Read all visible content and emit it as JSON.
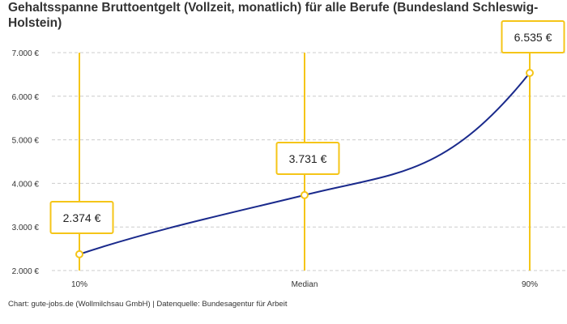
{
  "title": "Gehaltsspanne Bruttoentgelt (Vollzeit, monatlich) für alle Berufe (Bundesland Schleswig-Holstein)",
  "footer": "Chart: gute-jobs.de (Wollmilchsau GmbH) | Datenquelle: Bundesagentur für Arbeit",
  "colors": {
    "line": "#1a2a8c",
    "accent": "#f5c518",
    "grid": "#cccccc"
  },
  "chart_data": {
    "type": "line",
    "categories": [
      "10%",
      "Median",
      "90%"
    ],
    "values": [
      2374,
      3731,
      6535
    ],
    "data_labels": [
      "2.374 €",
      "3.731 €",
      "6.535 €"
    ],
    "y_ticks": [
      2000,
      3000,
      4000,
      5000,
      6000,
      7000
    ],
    "y_tick_labels": [
      "2.000 €",
      "3.000 €",
      "4.000 €",
      "5.000 €",
      "6.000 €",
      "7.000 €"
    ],
    "ylim": [
      2000,
      7000
    ],
    "grid": true,
    "legend": "none"
  }
}
